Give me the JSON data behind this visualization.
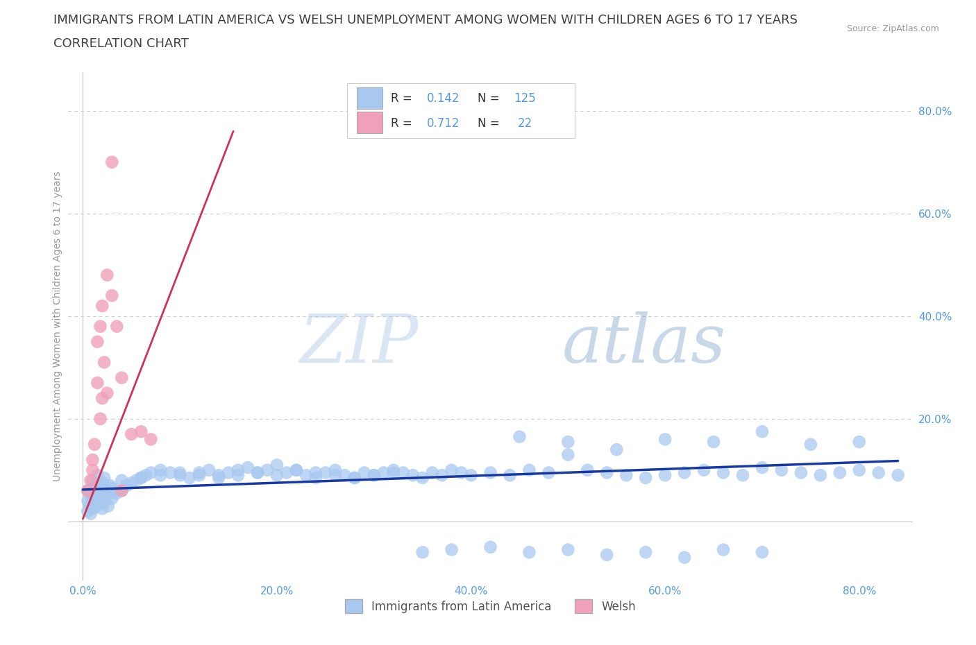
{
  "title": "IMMIGRANTS FROM LATIN AMERICA VS WELSH UNEMPLOYMENT AMONG WOMEN WITH CHILDREN AGES 6 TO 17 YEARS",
  "subtitle": "CORRELATION CHART",
  "source": "Source: ZipAtlas.com",
  "ylabel": "Unemployment Among Women with Children Ages 6 to 17 years",
  "legend1_label": "Immigrants from Latin America",
  "legend2_label": "Welsh",
  "R1": 0.142,
  "N1": 125,
  "R2": 0.712,
  "N2": 22,
  "blue_color": "#A8C8F0",
  "pink_color": "#F0A0B8",
  "blue_line_color": "#1A3A99",
  "pink_line_color": "#CC3355",
  "background_color": "#FFFFFF",
  "grid_color": "#CCCCCC",
  "title_color": "#404040",
  "tick_color": "#5599DD",
  "xlim": [
    -0.015,
    0.855
  ],
  "ylim": [
    -0.115,
    0.875
  ],
  "xticks": [
    0.0,
    0.2,
    0.4,
    0.6,
    0.8
  ],
  "yticks": [
    0.2,
    0.4,
    0.6,
    0.8
  ],
  "blue_scatter_x": [
    0.005,
    0.008,
    0.01,
    0.012,
    0.015,
    0.018,
    0.02,
    0.022,
    0.025,
    0.028,
    0.005,
    0.007,
    0.01,
    0.013,
    0.016,
    0.019,
    0.022,
    0.025,
    0.028,
    0.03,
    0.005,
    0.008,
    0.011,
    0.014,
    0.017,
    0.02,
    0.023,
    0.026,
    0.03,
    0.035,
    0.04,
    0.045,
    0.05,
    0.055,
    0.06,
    0.065,
    0.07,
    0.08,
    0.09,
    0.1,
    0.11,
    0.12,
    0.13,
    0.14,
    0.15,
    0.16,
    0.17,
    0.18,
    0.19,
    0.2,
    0.21,
    0.22,
    0.23,
    0.24,
    0.25,
    0.26,
    0.27,
    0.28,
    0.29,
    0.3,
    0.31,
    0.32,
    0.33,
    0.34,
    0.35,
    0.36,
    0.37,
    0.38,
    0.39,
    0.4,
    0.42,
    0.44,
    0.46,
    0.48,
    0.5,
    0.52,
    0.54,
    0.56,
    0.58,
    0.6,
    0.62,
    0.64,
    0.66,
    0.68,
    0.7,
    0.72,
    0.74,
    0.76,
    0.78,
    0.8,
    0.82,
    0.84,
    0.45,
    0.5,
    0.55,
    0.6,
    0.65,
    0.7,
    0.75,
    0.8,
    0.35,
    0.38,
    0.42,
    0.46,
    0.5,
    0.54,
    0.58,
    0.62,
    0.66,
    0.7,
    0.04,
    0.06,
    0.08,
    0.1,
    0.12,
    0.14,
    0.16,
    0.18,
    0.2,
    0.22,
    0.24,
    0.26,
    0.28,
    0.3,
    0.32
  ],
  "blue_scatter_y": [
    0.06,
    0.05,
    0.08,
    0.07,
    0.09,
    0.065,
    0.075,
    0.085,
    0.06,
    0.07,
    0.04,
    0.03,
    0.05,
    0.045,
    0.055,
    0.035,
    0.045,
    0.06,
    0.055,
    0.065,
    0.02,
    0.015,
    0.025,
    0.03,
    0.035,
    0.025,
    0.04,
    0.03,
    0.045,
    0.055,
    0.06,
    0.07,
    0.075,
    0.08,
    0.085,
    0.09,
    0.095,
    0.1,
    0.095,
    0.09,
    0.085,
    0.095,
    0.1,
    0.09,
    0.095,
    0.1,
    0.105,
    0.095,
    0.1,
    0.11,
    0.095,
    0.1,
    0.09,
    0.085,
    0.095,
    0.1,
    0.09,
    0.085,
    0.095,
    0.09,
    0.095,
    0.1,
    0.095,
    0.09,
    0.085,
    0.095,
    0.09,
    0.1,
    0.095,
    0.09,
    0.095,
    0.09,
    0.1,
    0.095,
    0.13,
    0.1,
    0.095,
    0.09,
    0.085,
    0.09,
    0.095,
    0.1,
    0.095,
    0.09,
    0.105,
    0.1,
    0.095,
    0.09,
    0.095,
    0.1,
    0.095,
    0.09,
    0.165,
    0.155,
    0.14,
    0.16,
    0.155,
    0.175,
    0.15,
    0.155,
    -0.06,
    -0.055,
    -0.05,
    -0.06,
    -0.055,
    -0.065,
    -0.06,
    -0.07,
    -0.055,
    -0.06,
    0.08,
    0.085,
    0.09,
    0.095,
    0.09,
    0.085,
    0.09,
    0.095,
    0.09,
    0.1,
    0.095,
    0.09,
    0.085,
    0.09,
    0.095
  ],
  "pink_scatter_x": [
    0.005,
    0.008,
    0.01,
    0.012,
    0.015,
    0.018,
    0.02,
    0.022,
    0.025,
    0.01,
    0.015,
    0.018,
    0.02,
    0.025,
    0.03,
    0.035,
    0.04,
    0.05,
    0.06,
    0.07,
    0.03,
    0.04
  ],
  "pink_scatter_y": [
    0.06,
    0.08,
    0.12,
    0.15,
    0.27,
    0.2,
    0.24,
    0.31,
    0.25,
    0.1,
    0.35,
    0.38,
    0.42,
    0.48,
    0.44,
    0.38,
    0.28,
    0.17,
    0.175,
    0.16,
    0.7,
    0.06
  ],
  "blue_line_x1": 0.0,
  "blue_line_y1": 0.062,
  "blue_line_x2": 0.84,
  "blue_line_y2": 0.118,
  "pink_line_x1": 0.0,
  "pink_line_y1": 0.005,
  "pink_line_x2": 0.155,
  "pink_line_y2": 0.76,
  "title_fontsize": 13,
  "subtitle_fontsize": 13,
  "axis_tick_fontsize": 11,
  "ylabel_fontsize": 10,
  "stats_fontsize": 12,
  "legend_fontsize": 12
}
